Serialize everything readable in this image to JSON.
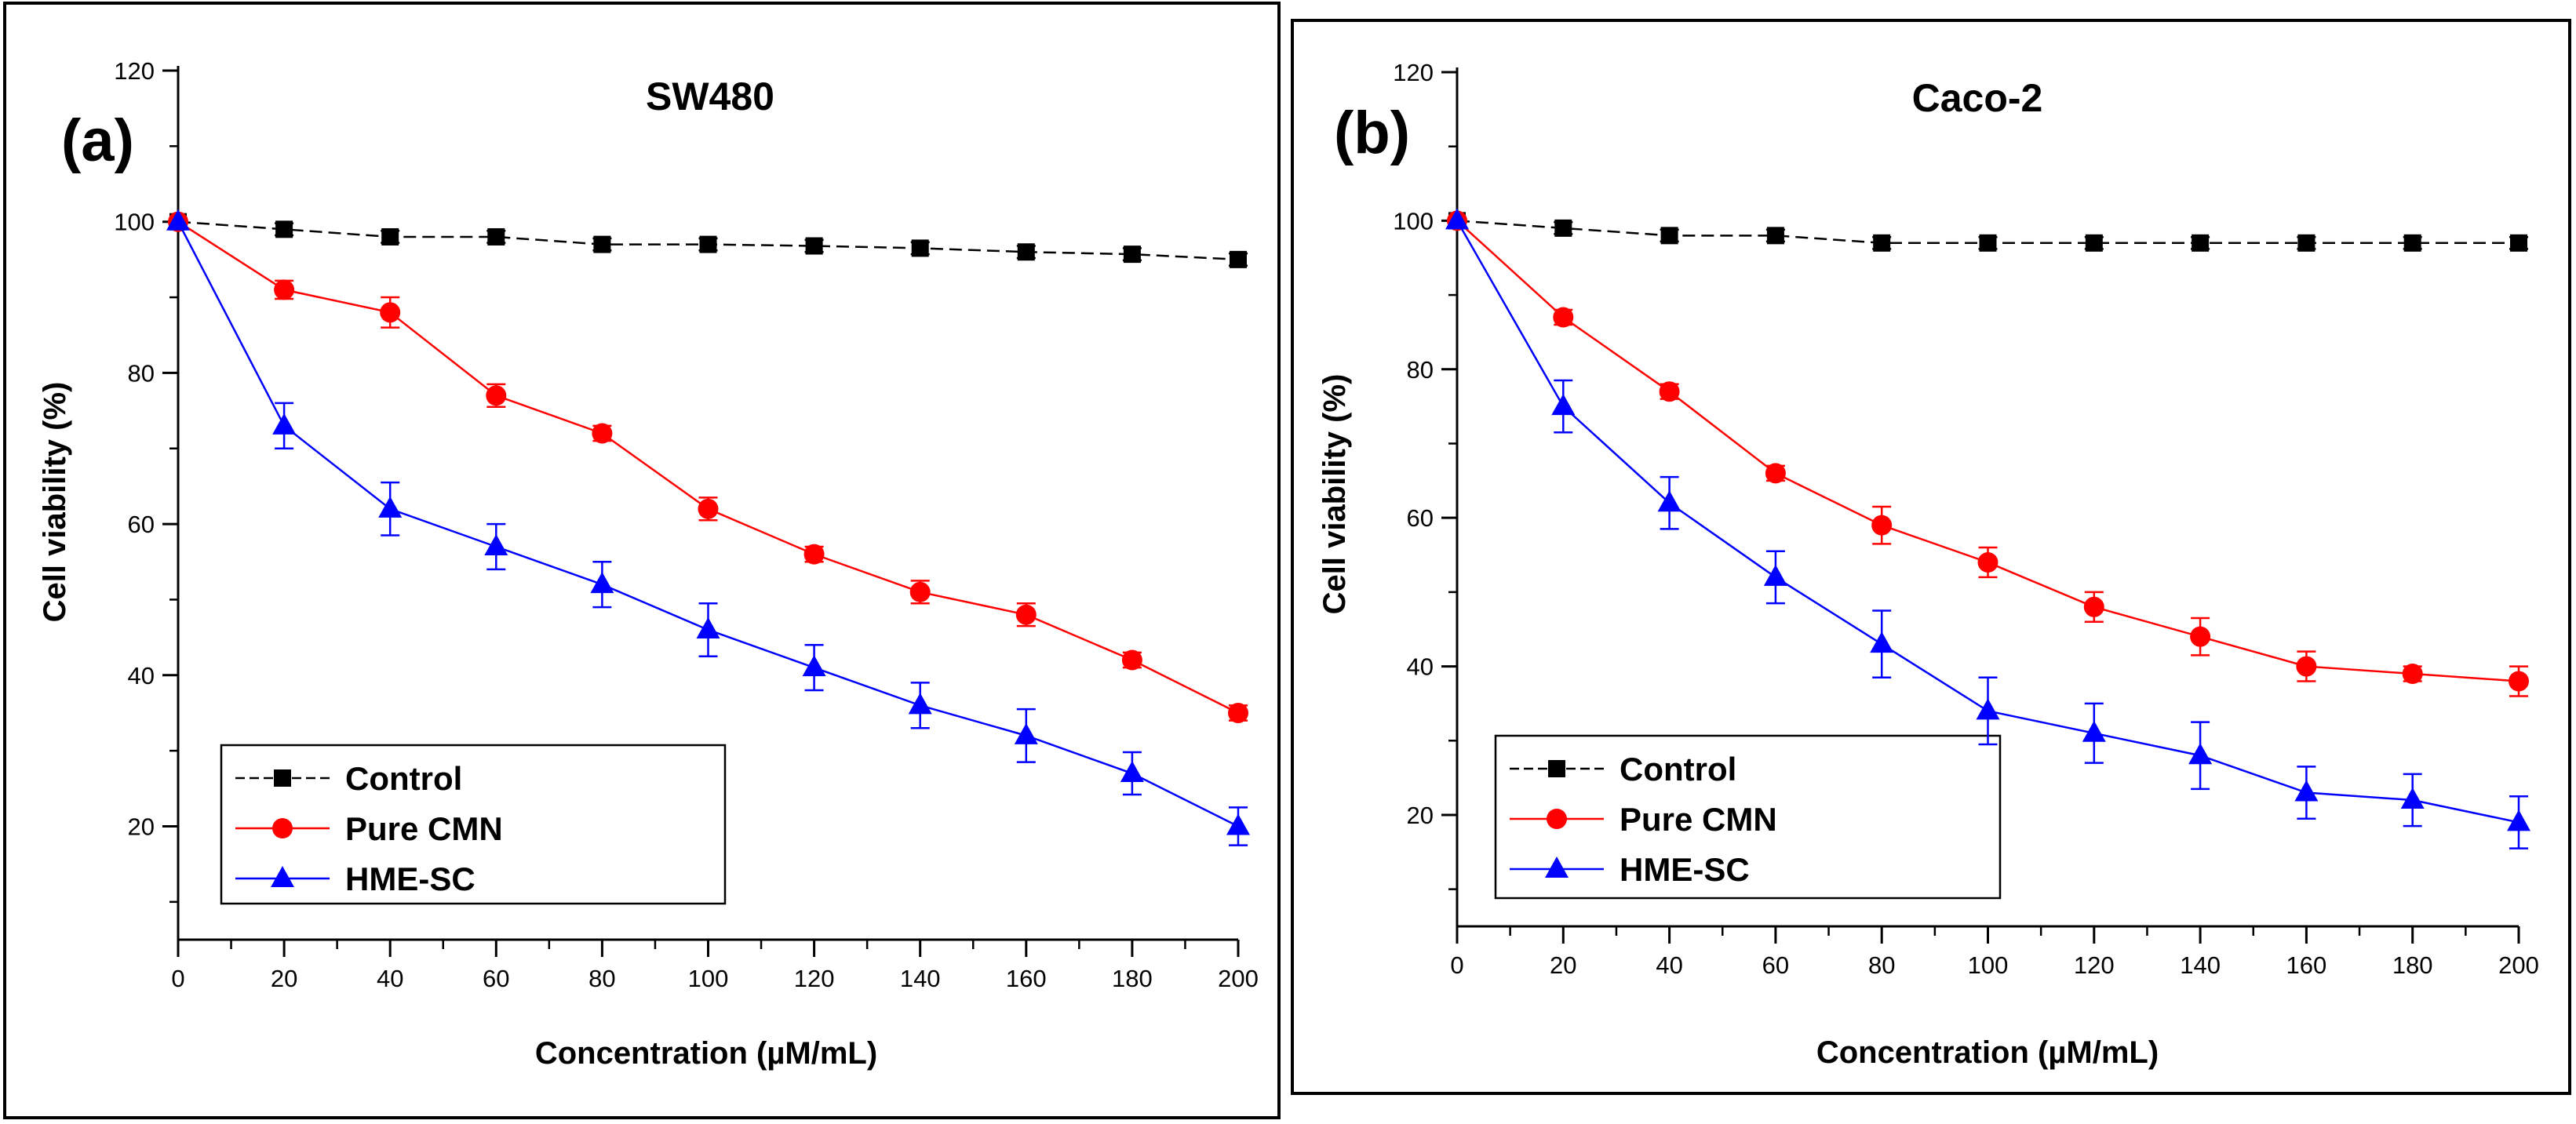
{
  "chart_data": [
    {
      "type": "line",
      "panel_label": "(a)",
      "title": "SW480",
      "xlabel": "Concentration (µM/mL)",
      "ylabel": "Cell viability (%)",
      "xlim": [
        0,
        200
      ],
      "ylim": [
        5,
        120
      ],
      "xticks": [
        0,
        20,
        40,
        60,
        80,
        100,
        120,
        140,
        160,
        180,
        200
      ],
      "yticks": [
        20,
        40,
        60,
        80,
        100,
        120
      ],
      "legend_position": "bottom-left",
      "x": [
        0,
        20,
        40,
        60,
        80,
        100,
        120,
        140,
        160,
        180,
        200
      ],
      "series": [
        {
          "name": "Control",
          "color": "#000000",
          "marker": "square",
          "dashed": true,
          "values": [
            100,
            99,
            98,
            98,
            97,
            97,
            96.8,
            96.5,
            96,
            95.7,
            95
          ],
          "errors": [
            0,
            0.8,
            0.8,
            0.8,
            0.8,
            0.8,
            0.8,
            0.8,
            0.8,
            0.8,
            0.8
          ]
        },
        {
          "name": "Pure CMN",
          "color": "#ff0000",
          "marker": "circle",
          "dashed": false,
          "values": [
            100,
            91,
            88,
            77,
            72,
            62,
            56,
            51,
            48,
            42,
            35
          ],
          "errors": [
            0,
            1.2,
            2,
            1.5,
            1,
            1.5,
            1,
            1.5,
            1.5,
            1,
            1
          ]
        },
        {
          "name": "HME-SC",
          "color": "#0000ff",
          "marker": "triangle",
          "dashed": false,
          "values": [
            100,
            73,
            62,
            57,
            52,
            46,
            41,
            36,
            32,
            27,
            20
          ],
          "errors": [
            0,
            3,
            3.5,
            3,
            3,
            3.5,
            3,
            3,
            3.5,
            2.8,
            2.5
          ]
        }
      ]
    },
    {
      "type": "line",
      "panel_label": "(b)",
      "title": "Caco-2",
      "xlabel": "Concentration (µM/mL)",
      "ylabel": "Cell viability (%)",
      "xlim": [
        0,
        200
      ],
      "ylim": [
        5,
        120
      ],
      "xticks": [
        0,
        20,
        40,
        60,
        80,
        100,
        120,
        140,
        160,
        180,
        200
      ],
      "yticks": [
        20,
        40,
        60,
        80,
        100,
        120
      ],
      "legend_position": "bottom-left",
      "x": [
        0,
        20,
        40,
        60,
        80,
        100,
        120,
        140,
        160,
        180,
        200
      ],
      "series": [
        {
          "name": "Control",
          "color": "#000000",
          "marker": "square",
          "dashed": true,
          "values": [
            100,
            99,
            98,
            98,
            97,
            97,
            97,
            97,
            97,
            97,
            97
          ],
          "errors": [
            0,
            0.8,
            0.8,
            0.8,
            0.8,
            0.8,
            0.8,
            0.8,
            0.8,
            0.8,
            0.8
          ]
        },
        {
          "name": "Pure CMN",
          "color": "#ff0000",
          "marker": "circle",
          "dashed": false,
          "values": [
            100,
            87,
            77,
            66,
            59,
            54,
            48,
            44,
            40,
            39,
            38
          ],
          "errors": [
            0,
            1,
            1,
            1,
            2.5,
            2,
            2,
            2.5,
            2,
            1,
            2
          ]
        },
        {
          "name": "HME-SC",
          "color": "#0000ff",
          "marker": "triangle",
          "dashed": false,
          "values": [
            100,
            75,
            62,
            52,
            43,
            34,
            31,
            28,
            23,
            22,
            19
          ],
          "errors": [
            0,
            3.5,
            3.5,
            3.5,
            4.5,
            4.5,
            4,
            4.5,
            3.5,
            3.5,
            3.5
          ]
        }
      ]
    }
  ]
}
